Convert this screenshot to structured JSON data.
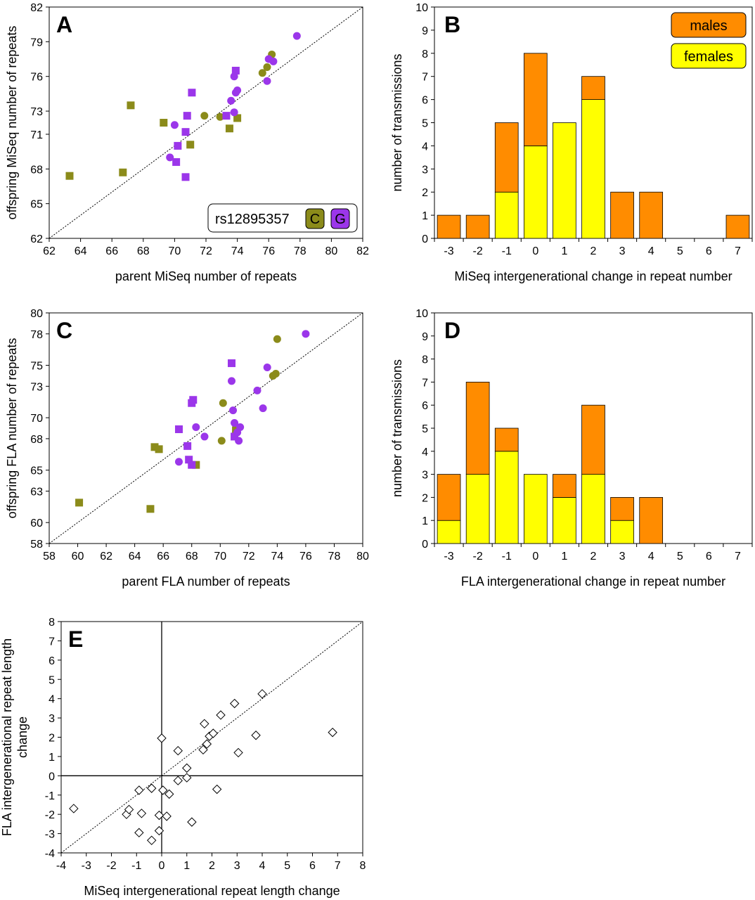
{
  "colors": {
    "C": "#8b8b1a",
    "G": "#9b36ea",
    "males": "#ff8c00",
    "females": "#ffff00"
  },
  "legend_A": {
    "label": "rs12895357",
    "c": "C",
    "g": "G"
  },
  "legend_B": {
    "males": "males",
    "females": "females"
  },
  "chart_data": [
    {
      "id": "A",
      "type": "scatter",
      "panel_label": "A",
      "xlabel": "parent MiSeq number of repeats",
      "ylabel": "offspring MiSeq number of repeats",
      "xlim": [
        62,
        82
      ],
      "ylim": [
        62,
        82
      ],
      "xticks": [
        62,
        64,
        66,
        68,
        70,
        72,
        74,
        76,
        78,
        80,
        82
      ],
      "yticks": [
        62,
        65,
        68,
        71,
        73,
        76,
        79,
        82
      ],
      "diagonal": true,
      "series": [
        {
          "name": "C",
          "marker": "square",
          "points": [
            [
              63.3,
              67.4
            ],
            [
              66.7,
              67.7
            ],
            [
              67.2,
              73.5
            ],
            [
              69.3,
              72.0
            ],
            [
              71.0,
              70.1
            ],
            [
              73.5,
              71.5
            ],
            [
              74.0,
              72.4
            ]
          ]
        },
        {
          "name": "C",
          "marker": "circle",
          "points": [
            [
              71.9,
              72.6
            ],
            [
              72.9,
              72.5
            ],
            [
              75.6,
              76.3
            ],
            [
              75.9,
              76.8
            ],
            [
              76.2,
              77.9
            ]
          ]
        },
        {
          "name": "G",
          "marker": "square",
          "points": [
            [
              70.1,
              68.6
            ],
            [
              70.2,
              70.0
            ],
            [
              70.7,
              71.2
            ],
            [
              70.7,
              67.3
            ],
            [
              71.1,
              74.6
            ],
            [
              70.8,
              72.6
            ],
            [
              73.3,
              72.6
            ],
            [
              73.9,
              76.5
            ]
          ]
        },
        {
          "name": "G",
          "marker": "circle",
          "points": [
            [
              69.7,
              69.0
            ],
            [
              70.0,
              71.8
            ],
            [
              73.6,
              73.9
            ],
            [
              73.8,
              76.0
            ],
            [
              73.9,
              74.6
            ],
            [
              74.0,
              74.8
            ],
            [
              73.8,
              72.9
            ],
            [
              75.9,
              75.6
            ],
            [
              76.0,
              77.5
            ],
            [
              76.3,
              77.3
            ],
            [
              77.8,
              79.5
            ]
          ]
        }
      ]
    },
    {
      "id": "B",
      "type": "bar",
      "panel_label": "B",
      "xlabel": "MiSeq intergenerational change in repeat number",
      "ylabel": "number of transmissions",
      "categories": [
        "-3",
        "-2",
        "-1",
        "0",
        "1",
        "2",
        "3",
        "4",
        "5",
        "6",
        "7"
      ],
      "ylim": [
        0,
        10
      ],
      "yticks": [
        0,
        1,
        2,
        3,
        4,
        5,
        6,
        7,
        8,
        9,
        10
      ],
      "stacked": true,
      "series": [
        {
          "name": "females",
          "values": [
            0,
            0,
            2,
            4,
            5,
            6,
            0,
            0,
            0,
            0,
            0
          ]
        },
        {
          "name": "males",
          "values": [
            1,
            1,
            3,
            4,
            0,
            1,
            2,
            2,
            0,
            0,
            1
          ]
        }
      ]
    },
    {
      "id": "C",
      "type": "scatter",
      "panel_label": "C",
      "xlabel": "parent FLA number of repeats",
      "ylabel": "offspring FLA number of repeats",
      "xlim": [
        58,
        80
      ],
      "ylim": [
        58,
        80
      ],
      "xticks": [
        58,
        60,
        62,
        64,
        66,
        68,
        70,
        72,
        74,
        76,
        78,
        80
      ],
      "yticks": [
        58,
        60,
        63,
        65,
        68,
        70,
        73,
        75,
        78,
        80
      ],
      "diagonal": true,
      "series": [
        {
          "name": "C",
          "marker": "square",
          "points": [
            [
              60.1,
              61.9
            ],
            [
              65.1,
              61.3
            ],
            [
              65.4,
              67.2
            ],
            [
              65.7,
              67.0
            ],
            [
              68.3,
              65.5
            ],
            [
              71.1,
              68.8
            ]
          ]
        },
        {
          "name": "C",
          "marker": "circle",
          "points": [
            [
              70.1,
              67.8
            ],
            [
              70.2,
              71.4
            ],
            [
              73.7,
              74.0
            ],
            [
              73.9,
              74.2
            ],
            [
              74.0,
              77.5
            ]
          ]
        },
        {
          "name": "G",
          "marker": "square",
          "points": [
            [
              67.1,
              68.9
            ],
            [
              67.7,
              67.3
            ],
            [
              67.8,
              66.0
            ],
            [
              68.0,
              65.5
            ],
            [
              68.0,
              71.4
            ],
            [
              68.1,
              71.7
            ],
            [
              70.8,
              75.2
            ],
            [
              71.0,
              68.2
            ]
          ]
        },
        {
          "name": "G",
          "marker": "circle",
          "points": [
            [
              67.1,
              65.8
            ],
            [
              68.3,
              69.1
            ],
            [
              68.9,
              68.2
            ],
            [
              70.8,
              73.5
            ],
            [
              70.9,
              70.7
            ],
            [
              71.0,
              69.5
            ],
            [
              71.2,
              68.6
            ],
            [
              71.3,
              67.8
            ],
            [
              71.4,
              69.1
            ],
            [
              72.6,
              72.6
            ],
            [
              73.0,
              70.9
            ],
            [
              73.3,
              74.8
            ],
            [
              76.0,
              78.0
            ]
          ]
        }
      ]
    },
    {
      "id": "D",
      "type": "bar",
      "panel_label": "D",
      "xlabel": "FLA intergenerational change in repeat number",
      "ylabel": "number of transmissions",
      "categories": [
        "-3",
        "-2",
        "-1",
        "0",
        "1",
        "2",
        "3",
        "4",
        "5",
        "6",
        "7"
      ],
      "ylim": [
        0,
        10
      ],
      "yticks": [
        0,
        1,
        2,
        3,
        4,
        5,
        6,
        7,
        8,
        9,
        10
      ],
      "stacked": true,
      "series": [
        {
          "name": "females",
          "values": [
            1,
            3,
            4,
            3,
            2,
            3,
            1,
            0,
            0,
            0,
            0
          ]
        },
        {
          "name": "males",
          "values": [
            2,
            4,
            1,
            0,
            1,
            3,
            1,
            2,
            0,
            0,
            0
          ]
        }
      ]
    },
    {
      "id": "E",
      "type": "scatter",
      "panel_label": "E",
      "xlabel": "MiSeq intergenerational repeat length change",
      "ylabel": "FLA intergenerational repeat length change",
      "ylabel_lines": [
        "FLA intergenerational repeat length",
        "change"
      ],
      "xlim": [
        -4,
        8
      ],
      "ylim": [
        -4,
        8
      ],
      "xticks": [
        -4,
        -3,
        -2,
        -1,
        0,
        1,
        2,
        3,
        4,
        5,
        6,
        7,
        8
      ],
      "yticks": [
        -4,
        -3,
        -2,
        -1,
        0,
        1,
        2,
        3,
        4,
        5,
        6,
        7,
        8
      ],
      "diagonal": true,
      "zero_lines": true,
      "series": [
        {
          "name": "",
          "marker": "diamond",
          "points": [
            [
              -3.5,
              -1.7
            ],
            [
              -1.4,
              -2.0
            ],
            [
              -1.3,
              -1.75
            ],
            [
              -0.9,
              -0.75
            ],
            [
              -0.9,
              -2.95
            ],
            [
              -0.8,
              -1.95
            ],
            [
              -0.4,
              -0.65
            ],
            [
              -0.4,
              -3.35
            ],
            [
              -0.1,
              -2.05
            ],
            [
              -0.1,
              -2.85
            ],
            [
              0.0,
              1.95
            ],
            [
              0.05,
              -0.75
            ],
            [
              0.2,
              -2.1
            ],
            [
              0.3,
              -0.95
            ],
            [
              0.65,
              -0.25
            ],
            [
              0.65,
              1.3
            ],
            [
              1.0,
              -0.1
            ],
            [
              1.0,
              0.4
            ],
            [
              1.2,
              -2.4
            ],
            [
              1.65,
              1.35
            ],
            [
              1.7,
              2.7
            ],
            [
              1.8,
              1.65
            ],
            [
              1.9,
              2.05
            ],
            [
              2.05,
              2.2
            ],
            [
              2.2,
              -0.7
            ],
            [
              2.35,
              3.15
            ],
            [
              2.9,
              3.75
            ],
            [
              3.05,
              1.2
            ],
            [
              3.75,
              2.1
            ],
            [
              4.0,
              4.25
            ],
            [
              6.8,
              2.25
            ]
          ]
        }
      ]
    }
  ]
}
